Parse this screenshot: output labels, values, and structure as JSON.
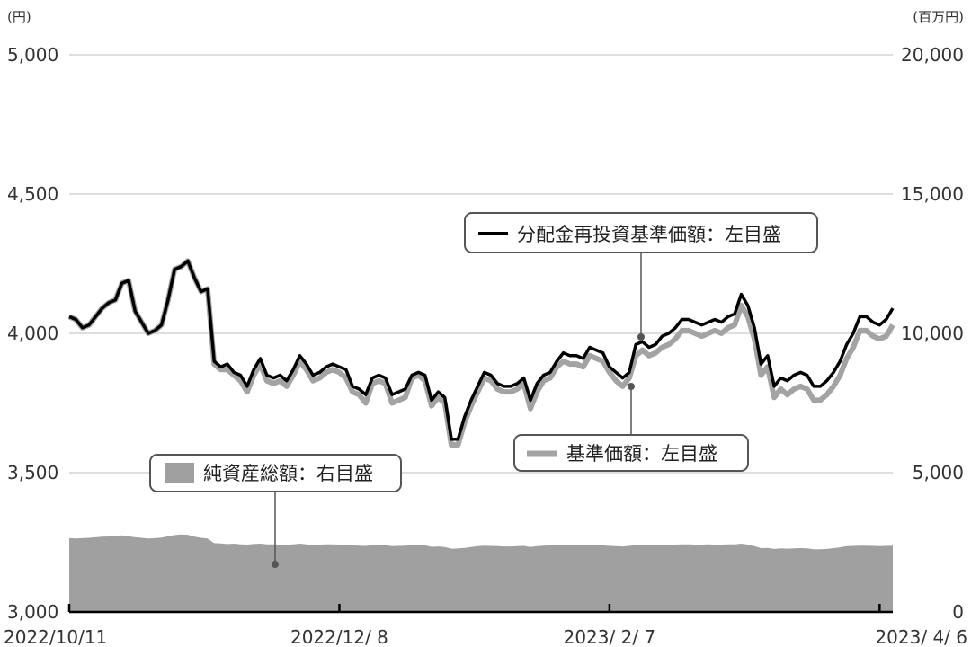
{
  "chart_data": {
    "type": "line",
    "title": "",
    "y_left_unit": "(円)",
    "y_right_unit": "(百万円)",
    "y_left_ticks": [
      "3,000",
      "3,500",
      "4,000",
      "4,500",
      "5,000"
    ],
    "y_right_ticks": [
      "0",
      "5,000",
      "10,000",
      "15,000",
      "20,000"
    ],
    "ylim_left": [
      3000,
      5000
    ],
    "ylim_right": [
      0,
      20000
    ],
    "x_ticks": [
      "2022/10/11",
      "2022/12/ 8",
      "2023/ 2/ 7",
      "2023/ 4/ 6"
    ],
    "x_tick_positions": [
      0,
      41,
      82,
      123
    ],
    "n_points": 126,
    "grid": "horizontal",
    "legend_position": "callouts",
    "series": [
      {
        "name": "分配金再投資基準価額：左目盛",
        "axis": "left",
        "kind": "line",
        "color": "#000000",
        "values": [
          4060,
          4050,
          4020,
          4030,
          4060,
          4090,
          4110,
          4120,
          4180,
          4190,
          4080,
          4040,
          4000,
          4010,
          4030,
          4120,
          4230,
          4240,
          4260,
          4200,
          4150,
          4160,
          3900,
          3880,
          3890,
          3860,
          3850,
          3810,
          3870,
          3910,
          3850,
          3840,
          3850,
          3830,
          3870,
          3920,
          3890,
          3850,
          3860,
          3880,
          3890,
          3880,
          3870,
          3810,
          3800,
          3780,
          3840,
          3850,
          3840,
          3780,
          3790,
          3800,
          3850,
          3860,
          3850,
          3760,
          3790,
          3770,
          3620,
          3620,
          3700,
          3760,
          3810,
          3860,
          3850,
          3820,
          3810,
          3810,
          3820,
          3840,
          3760,
          3820,
          3850,
          3860,
          3900,
          3930,
          3920,
          3920,
          3910,
          3950,
          3940,
          3930,
          3880,
          3860,
          3840,
          3860,
          3960,
          3970,
          3950,
          3960,
          3990,
          4000,
          4020,
          4050,
          4050,
          4040,
          4030,
          4040,
          4050,
          4040,
          4060,
          4070,
          4140,
          4100,
          4020,
          3890,
          3920,
          3810,
          3840,
          3830,
          3850,
          3860,
          3850,
          3810,
          3810,
          3830,
          3860,
          3900,
          3960,
          4000,
          4060,
          4060,
          4040,
          4030,
          4050,
          4090
        ]
      },
      {
        "name": "基準価額：左目盛",
        "axis": "left",
        "kind": "line",
        "color": "#a3a3a3",
        "values": [
          4060,
          4050,
          4020,
          4030,
          4060,
          4090,
          4110,
          4120,
          4180,
          4190,
          4080,
          4040,
          4000,
          4010,
          4030,
          4120,
          4230,
          4240,
          4260,
          4200,
          4150,
          4160,
          3890,
          3870,
          3870,
          3850,
          3830,
          3790,
          3850,
          3890,
          3830,
          3820,
          3830,
          3810,
          3850,
          3900,
          3870,
          3830,
          3840,
          3860,
          3870,
          3860,
          3840,
          3790,
          3780,
          3750,
          3820,
          3830,
          3820,
          3750,
          3760,
          3770,
          3840,
          3850,
          3830,
          3740,
          3770,
          3750,
          3600,
          3600,
          3680,
          3740,
          3790,
          3840,
          3830,
          3800,
          3790,
          3790,
          3800,
          3820,
          3730,
          3790,
          3830,
          3840,
          3880,
          3900,
          3890,
          3890,
          3880,
          3920,
          3910,
          3900,
          3860,
          3830,
          3810,
          3840,
          3920,
          3940,
          3920,
          3930,
          3950,
          3960,
          3980,
          4010,
          4010,
          4000,
          3990,
          4000,
          4010,
          4000,
          4020,
          4030,
          4100,
          4060,
          3980,
          3850,
          3880,
          3770,
          3800,
          3780,
          3800,
          3810,
          3800,
          3760,
          3760,
          3780,
          3810,
          3850,
          3910,
          3950,
          4010,
          4010,
          3990,
          3980,
          3990,
          4030
        ]
      },
      {
        "name": "純資産総額：右目盛",
        "axis": "right",
        "kind": "area",
        "color": "#a0a0a0",
        "values": [
          2650,
          2640,
          2650,
          2660,
          2680,
          2700,
          2710,
          2730,
          2750,
          2720,
          2680,
          2660,
          2640,
          2650,
          2670,
          2720,
          2760,
          2780,
          2770,
          2700,
          2660,
          2640,
          2470,
          2460,
          2440,
          2450,
          2430,
          2420,
          2440,
          2450,
          2430,
          2430,
          2420,
          2410,
          2430,
          2450,
          2430,
          2410,
          2420,
          2430,
          2430,
          2420,
          2410,
          2390,
          2380,
          2370,
          2400,
          2410,
          2400,
          2360,
          2370,
          2380,
          2400,
          2410,
          2390,
          2340,
          2350,
          2330,
          2270,
          2280,
          2300,
          2330,
          2360,
          2380,
          2370,
          2360,
          2350,
          2350,
          2360,
          2370,
          2330,
          2360,
          2380,
          2390,
          2400,
          2410,
          2400,
          2400,
          2390,
          2410,
          2400,
          2390,
          2370,
          2360,
          2350,
          2370,
          2400,
          2410,
          2400,
          2400,
          2410,
          2410,
          2420,
          2430,
          2430,
          2420,
          2420,
          2430,
          2420,
          2420,
          2430,
          2430,
          2450,
          2420,
          2360,
          2290,
          2300,
          2260,
          2280,
          2270,
          2280,
          2290,
          2280,
          2250,
          2250,
          2260,
          2290,
          2320,
          2360,
          2370,
          2380,
          2380,
          2370,
          2360,
          2370,
          2380
        ]
      }
    ]
  }
}
